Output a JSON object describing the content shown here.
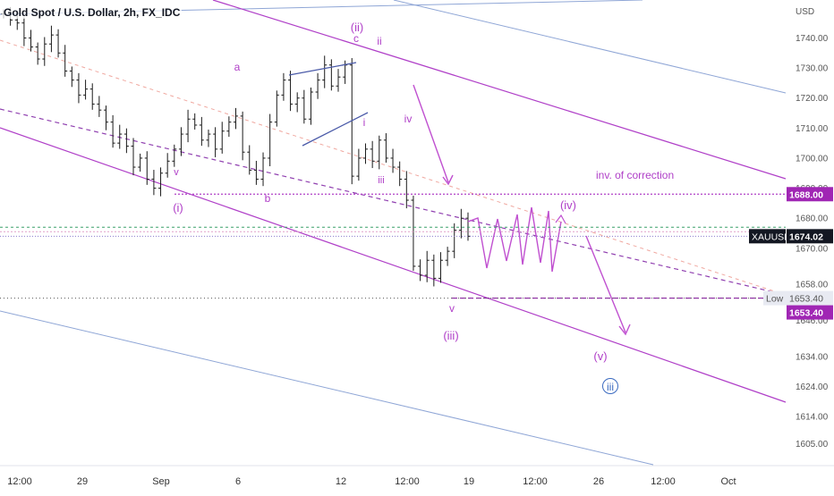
{
  "header": {
    "title": "Gold Spot / U.S. Dollar, 2h, FX_IDC"
  },
  "chart_data": {
    "type": "candlestick",
    "title": "Gold Spot / U.S. Dollar, 2h, FX_IDC",
    "symbol": "XAUUSD",
    "currency": "USD",
    "ylim": [
      1598,
      1751
    ],
    "y_ticks": [
      "1740.00",
      "1730.00",
      "1720.00",
      "1710.00",
      "1700.00",
      "1690.00",
      "1680.00",
      "1670.00",
      "1658.00",
      "1646.00",
      "1634.00",
      "1624.00",
      "1614.00",
      "1605.00"
    ],
    "x_ticks": [
      "12:00",
      "29",
      "Sep",
      "6",
      "12",
      "12:00",
      "19",
      "12:00",
      "26",
      "12:00",
      "Oct"
    ],
    "price_labels": {
      "inv_level": "1688.00",
      "last_symbol": "XAUUSD",
      "last_price": "1674.02",
      "low_label": "Low",
      "low_value": "1653.40",
      "support": "1653.40"
    },
    "approx_path": [
      1748,
      1746,
      1745,
      1740,
      1737,
      1733,
      1738,
      1741,
      1735,
      1729,
      1726,
      1721,
      1723,
      1718,
      1716,
      1712,
      1705,
      1708,
      1704,
      1697,
      1700,
      1693,
      1690,
      1695,
      1699,
      1703,
      1708,
      1713,
      1711,
      1706,
      1708,
      1703,
      1709,
      1712,
      1714,
      1702,
      1696,
      1693,
      1700,
      1712,
      1721,
      1726,
      1718,
      1720,
      1713,
      1722,
      1726,
      1731,
      1724,
      1727,
      1731,
      1694,
      1700,
      1703,
      1699,
      1706,
      1700,
      1697,
      1693,
      1686,
      1664,
      1661,
      1666,
      1660,
      1666,
      1669,
      1676,
      1680,
      1674
    ],
    "wave_labels": [
      "(i)",
      "v",
      "a",
      "b",
      "(ii)",
      "c",
      "ii",
      "i",
      "iii",
      "iv",
      "v",
      "(iii)",
      "(iv)",
      "(v)",
      "iii"
    ],
    "annotation": "inv. of correction",
    "grid": false,
    "legend": "none"
  }
}
